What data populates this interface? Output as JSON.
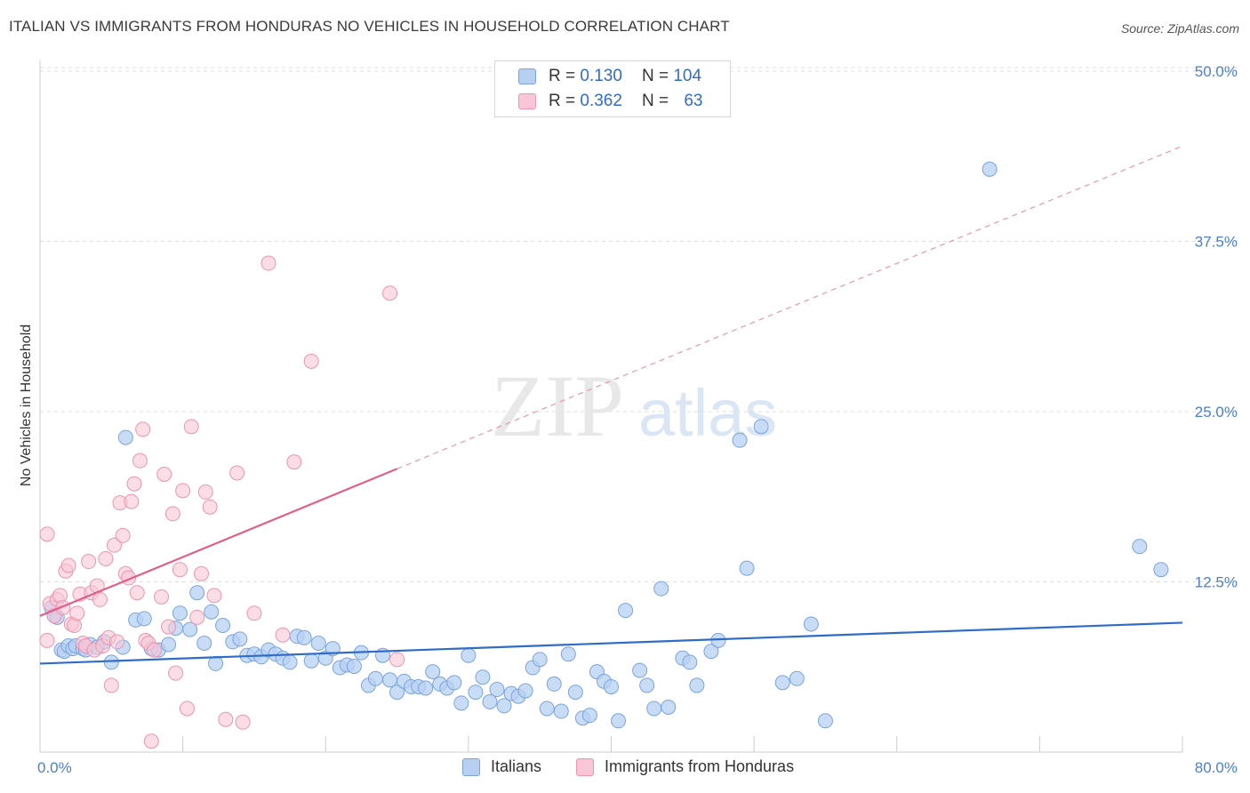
{
  "title": "ITALIAN VS IMMIGRANTS FROM HONDURAS NO VEHICLES IN HOUSEHOLD CORRELATION CHART",
  "source": "Source: ZipAtlas.com",
  "watermark": {
    "zip": "ZIP",
    "atlas": "atlas"
  },
  "legend": {
    "italians": {
      "r_label": "R =",
      "r_value": "0.130",
      "n_label": "N =",
      "n_value": "104"
    },
    "honduras": {
      "r_label": "R =",
      "r_value": "0.362",
      "n_label": "N =",
      "n_value": "63"
    }
  },
  "bottom_legend": {
    "italians": "Italians",
    "honduras": "Immigrants from Honduras"
  },
  "colors": {
    "italians_fill": "#b7d0f1",
    "italians_stroke": "#7aa4dd",
    "italians_line": "#2f6cc8",
    "honduras_fill": "#f8c6d6",
    "honduras_stroke": "#ee93b1",
    "honduras_line": "#e0608b",
    "tick_text": "#4a7fd0",
    "grid": "#dcdcdc"
  },
  "chart_data": {
    "type": "scatter",
    "title": "ITALIAN VS IMMIGRANTS FROM HONDURAS NO VEHICLES IN HOUSEHOLD CORRELATION CHART",
    "xlabel": "",
    "ylabel": "No Vehicles in Household",
    "xlim": [
      0,
      80
    ],
    "ylim": [
      0,
      50
    ],
    "x_tick_labels": [
      "0.0%",
      "80.0%"
    ],
    "y_tick_labels": [
      "12.5%",
      "25.0%",
      "37.5%",
      "50.0%"
    ],
    "y_ticks": [
      12.5,
      25.0,
      37.5,
      50.0
    ],
    "series": [
      {
        "name": "Italians",
        "trend": {
          "x": [
            0,
            80
          ],
          "y": [
            6.5,
            9.5
          ],
          "style": "solid"
        },
        "points": [
          [
            0.8,
            10.6
          ],
          [
            1.0,
            10.0
          ],
          [
            1.2,
            9.9
          ],
          [
            1.5,
            7.5
          ],
          [
            1.7,
            7.4
          ],
          [
            2.0,
            7.8
          ],
          [
            2.3,
            7.6
          ],
          [
            2.5,
            7.8
          ],
          [
            3.0,
            7.6
          ],
          [
            3.2,
            7.5
          ],
          [
            3.5,
            7.9
          ],
          [
            4.0,
            7.7
          ],
          [
            4.5,
            8.1
          ],
          [
            5.0,
            6.6
          ],
          [
            5.8,
            7.7
          ],
          [
            6.0,
            23.1
          ],
          [
            6.7,
            9.7
          ],
          [
            7.3,
            9.8
          ],
          [
            7.8,
            7.6
          ],
          [
            8.3,
            7.5
          ],
          [
            9.0,
            7.9
          ],
          [
            9.5,
            9.1
          ],
          [
            9.8,
            10.2
          ],
          [
            10.5,
            9.0
          ],
          [
            11.0,
            11.7
          ],
          [
            11.5,
            8.0
          ],
          [
            12.0,
            10.3
          ],
          [
            12.3,
            6.5
          ],
          [
            12.8,
            9.3
          ],
          [
            13.5,
            8.1
          ],
          [
            14.0,
            8.3
          ],
          [
            14.5,
            7.1
          ],
          [
            15.0,
            7.2
          ],
          [
            15.5,
            7.0
          ],
          [
            16.0,
            7.5
          ],
          [
            16.5,
            7.2
          ],
          [
            17.0,
            6.9
          ],
          [
            17.5,
            6.6
          ],
          [
            18.0,
            8.5
          ],
          [
            18.5,
            8.4
          ],
          [
            19.0,
            6.7
          ],
          [
            19.5,
            8.0
          ],
          [
            20.0,
            6.9
          ],
          [
            20.5,
            7.6
          ],
          [
            21.0,
            6.2
          ],
          [
            21.5,
            6.4
          ],
          [
            22.0,
            6.3
          ],
          [
            22.5,
            7.3
          ],
          [
            23.0,
            4.9
          ],
          [
            23.5,
            5.4
          ],
          [
            24.0,
            7.1
          ],
          [
            24.5,
            5.3
          ],
          [
            25.0,
            4.4
          ],
          [
            25.5,
            5.2
          ],
          [
            26.0,
            4.8
          ],
          [
            26.5,
            4.8
          ],
          [
            27.0,
            4.7
          ],
          [
            27.5,
            5.9
          ],
          [
            28.0,
            5.0
          ],
          [
            28.5,
            4.7
          ],
          [
            29.0,
            5.1
          ],
          [
            29.5,
            3.6
          ],
          [
            30.0,
            7.1
          ],
          [
            30.5,
            4.4
          ],
          [
            31.0,
            5.5
          ],
          [
            31.5,
            3.7
          ],
          [
            32.0,
            4.6
          ],
          [
            32.5,
            3.4
          ],
          [
            33.0,
            4.3
          ],
          [
            33.5,
            4.1
          ],
          [
            34.0,
            4.5
          ],
          [
            34.5,
            6.2
          ],
          [
            35.0,
            6.8
          ],
          [
            35.5,
            3.2
          ],
          [
            36.0,
            5.0
          ],
          [
            36.5,
            3.0
          ],
          [
            37.0,
            7.2
          ],
          [
            37.5,
            4.4
          ],
          [
            38.0,
            2.5
          ],
          [
            38.5,
            2.7
          ],
          [
            39.0,
            5.9
          ],
          [
            39.5,
            5.2
          ],
          [
            40.0,
            4.8
          ],
          [
            40.5,
            2.3
          ],
          [
            41.0,
            10.4
          ],
          [
            42.0,
            6.0
          ],
          [
            42.5,
            4.9
          ],
          [
            43.0,
            3.2
          ],
          [
            43.5,
            12.0
          ],
          [
            44.0,
            3.3
          ],
          [
            45.0,
            6.9
          ],
          [
            45.5,
            6.6
          ],
          [
            46.0,
            4.9
          ],
          [
            47.0,
            7.4
          ],
          [
            47.5,
            8.2
          ],
          [
            49.0,
            22.9
          ],
          [
            49.5,
            13.5
          ],
          [
            50.5,
            23.9
          ],
          [
            52.0,
            5.1
          ],
          [
            53.0,
            5.4
          ],
          [
            54.0,
            9.4
          ],
          [
            55.0,
            2.3
          ],
          [
            66.5,
            42.8
          ],
          [
            77.0,
            15.1
          ],
          [
            78.5,
            13.4
          ]
        ]
      },
      {
        "name": "Immigrants from Honduras",
        "trend": {
          "x": [
            0,
            25
          ],
          "y": [
            10.0,
            20.8
          ],
          "style": "solid",
          "extension": {
            "x": [
              25,
              80
            ],
            "y": [
              20.8,
              44.5
            ],
            "style": "dashed"
          }
        },
        "points": [
          [
            0.5,
            8.2
          ],
          [
            0.5,
            16.0
          ],
          [
            0.7,
            10.9
          ],
          [
            1.0,
            10.0
          ],
          [
            1.2,
            11.2
          ],
          [
            1.4,
            11.5
          ],
          [
            1.6,
            10.6
          ],
          [
            1.8,
            13.3
          ],
          [
            2.0,
            13.7
          ],
          [
            2.2,
            9.4
          ],
          [
            2.4,
            9.3
          ],
          [
            2.6,
            10.2
          ],
          [
            2.8,
            11.6
          ],
          [
            3.0,
            8.0
          ],
          [
            3.2,
            7.8
          ],
          [
            3.4,
            14.0
          ],
          [
            3.6,
            11.7
          ],
          [
            3.8,
            7.5
          ],
          [
            4.0,
            12.2
          ],
          [
            4.2,
            11.2
          ],
          [
            4.4,
            7.8
          ],
          [
            4.6,
            14.2
          ],
          [
            4.8,
            8.4
          ],
          [
            5.0,
            4.9
          ],
          [
            5.2,
            15.2
          ],
          [
            5.4,
            8.1
          ],
          [
            5.6,
            18.3
          ],
          [
            5.8,
            15.9
          ],
          [
            6.0,
            13.1
          ],
          [
            6.2,
            12.8
          ],
          [
            6.4,
            18.4
          ],
          [
            6.6,
            19.7
          ],
          [
            6.8,
            11.7
          ],
          [
            7.0,
            21.4
          ],
          [
            7.2,
            23.7
          ],
          [
            7.4,
            8.2
          ],
          [
            7.6,
            8.0
          ],
          [
            7.8,
            0.8
          ],
          [
            8.0,
            7.5
          ],
          [
            8.5,
            11.4
          ],
          [
            8.7,
            20.4
          ],
          [
            9.0,
            9.2
          ],
          [
            9.3,
            17.5
          ],
          [
            9.5,
            5.8
          ],
          [
            9.8,
            13.4
          ],
          [
            10.0,
            19.2
          ],
          [
            10.3,
            3.2
          ],
          [
            10.6,
            23.9
          ],
          [
            11.0,
            9.9
          ],
          [
            11.3,
            13.1
          ],
          [
            11.6,
            19.1
          ],
          [
            11.9,
            18.0
          ],
          [
            12.2,
            11.5
          ],
          [
            13.0,
            2.4
          ],
          [
            13.8,
            20.5
          ],
          [
            14.2,
            2.2
          ],
          [
            15.0,
            10.2
          ],
          [
            16.0,
            35.9
          ],
          [
            17.0,
            8.6
          ],
          [
            17.8,
            21.3
          ],
          [
            19.0,
            28.7
          ],
          [
            24.5,
            33.7
          ],
          [
            25.0,
            6.8
          ]
        ]
      }
    ]
  }
}
